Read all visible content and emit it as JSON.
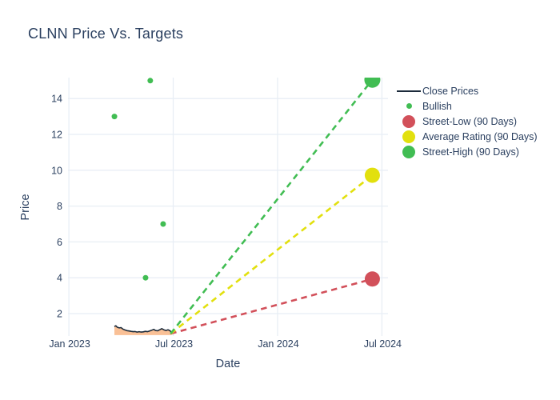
{
  "chart_data": {
    "type": "scatter",
    "title": "CLNN Price Vs. Targets",
    "xlabel": "Date",
    "ylabel": "Price",
    "grid": true,
    "legend_position": "right",
    "x_unit": "months since Jan 2023",
    "xlim": [
      -0.05,
      18.35
    ],
    "ylim": [
      0.75,
      15.17
    ],
    "x_ticks": [
      {
        "m": 0,
        "label": "Jan 2023"
      },
      {
        "m": 6,
        "label": "Jul 2023"
      },
      {
        "m": 12,
        "label": "Jan 2024"
      },
      {
        "m": 18,
        "label": "Jul 2024"
      }
    ],
    "y_ticks": [
      2,
      4,
      6,
      8,
      10,
      12,
      14
    ],
    "colors": {
      "text": "#2a3f5f",
      "gridline": "#e8eef5",
      "close_line": "#1c2b3b",
      "close_fill": "#f9c096",
      "bullish_green": "#41bd53",
      "street_low_red": "#d2505a",
      "average_yellow": "#e2e00e",
      "street_high_green": "#41bd53"
    },
    "series": [
      {
        "name": "Close Prices",
        "type": "line",
        "legend_marker": "line",
        "color": "#1c2b3b",
        "fill_color": "#f9c096",
        "fill_baseline": 0.8,
        "points": [
          [
            2.62,
            1.28
          ],
          [
            2.7,
            1.32
          ],
          [
            2.78,
            1.24
          ],
          [
            2.9,
            1.2
          ],
          [
            3.0,
            1.22
          ],
          [
            3.1,
            1.14
          ],
          [
            3.22,
            1.09
          ],
          [
            3.34,
            1.05
          ],
          [
            3.46,
            1.03
          ],
          [
            3.58,
            1.01
          ],
          [
            3.7,
            0.99
          ],
          [
            3.8,
            1.0
          ],
          [
            3.92,
            0.97
          ],
          [
            4.04,
            0.99
          ],
          [
            4.16,
            0.97
          ],
          [
            4.28,
            0.98
          ],
          [
            4.4,
            1.01
          ],
          [
            4.52,
            0.99
          ],
          [
            4.64,
            1.03
          ],
          [
            4.76,
            1.07
          ],
          [
            4.88,
            1.12
          ],
          [
            4.98,
            1.06
          ],
          [
            5.1,
            1.04
          ],
          [
            5.22,
            1.1
          ],
          [
            5.34,
            1.16
          ],
          [
            5.46,
            1.1
          ],
          [
            5.58,
            1.06
          ],
          [
            5.7,
            1.1
          ],
          [
            5.82,
            1.04
          ],
          [
            5.9,
            0.95
          ]
        ]
      },
      {
        "name": "Bullish",
        "type": "scatter",
        "legend_marker": "dot",
        "color": "#41bd53",
        "marker_radius": 3.5,
        "points": [
          [
            2.62,
            13.0
          ],
          [
            4.68,
            15.0
          ],
          [
            4.41,
            4.0
          ],
          [
            5.42,
            7.0
          ]
        ]
      },
      {
        "name": "Street-Low (90 Days)",
        "type": "projection",
        "legend_marker": "circle",
        "color": "#d2505a",
        "marker_radius": 9.5,
        "start": [
          5.85,
          0.88
        ],
        "end": [
          17.45,
          3.93
        ]
      },
      {
        "name": "Average Rating (90 Days)",
        "type": "projection",
        "legend_marker": "circle",
        "color": "#e2e00e",
        "marker_radius": 9.5,
        "start": [
          5.85,
          0.88
        ],
        "end": [
          17.45,
          9.72
        ]
      },
      {
        "name": "Street-High (90 Days)",
        "type": "projection",
        "legend_marker": "circle",
        "color": "#41bd53",
        "marker_radius": 10,
        "start": [
          5.85,
          0.88
        ],
        "end": [
          17.45,
          15.05
        ]
      }
    ]
  }
}
